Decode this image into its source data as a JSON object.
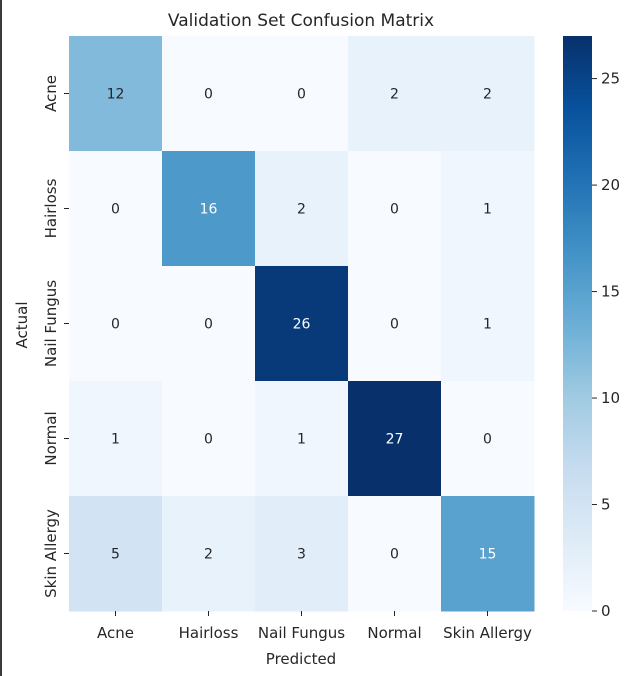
{
  "chart_data": {
    "type": "heatmap",
    "title": "Validation Set Confusion Matrix",
    "xlabel": "Predicted",
    "ylabel": "Actual",
    "x_categories": [
      "Acne",
      "Hairloss",
      "Nail Fungus",
      "Normal",
      "Skin Allergy"
    ],
    "y_categories": [
      "Acne",
      "Hairloss",
      "Nail Fungus",
      "Normal",
      "Skin Allergy"
    ],
    "values": [
      [
        12,
        0,
        0,
        2,
        2
      ],
      [
        0,
        16,
        2,
        0,
        1
      ],
      [
        0,
        0,
        26,
        0,
        1
      ],
      [
        1,
        0,
        1,
        27,
        0
      ],
      [
        5,
        2,
        3,
        0,
        15
      ]
    ],
    "colormap": "Blues",
    "colorbar": {
      "min": 0,
      "max": 27,
      "ticks": [
        0,
        5,
        10,
        15,
        20,
        25
      ]
    },
    "annotate": true,
    "grid": false
  }
}
